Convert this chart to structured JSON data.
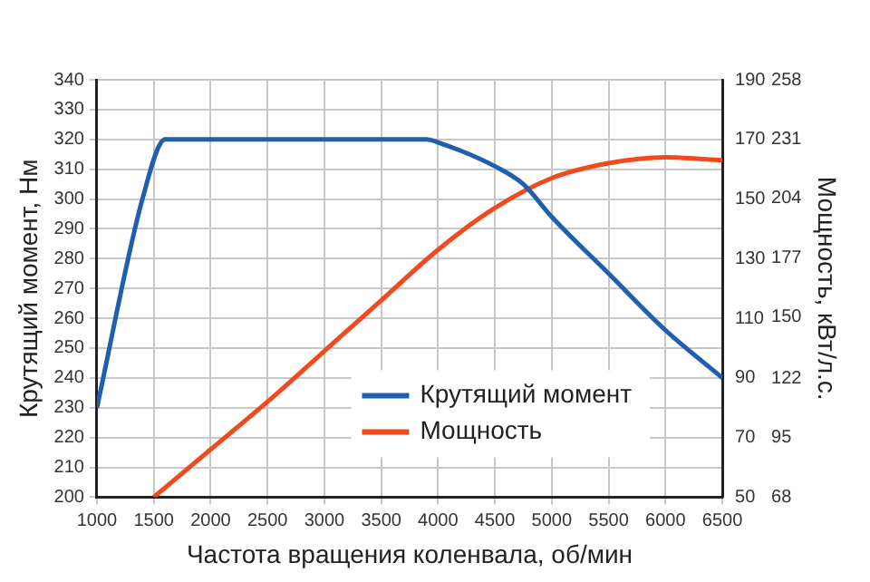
{
  "chart_data": {
    "type": "line",
    "xlabel": "Частота вращения коленвала, об/мин",
    "ylabel": "Крутящий момент, Нм",
    "y2label": "Мощность, кВт/л.с.",
    "xlim": [
      1000,
      6500
    ],
    "xticks": [
      1000,
      1500,
      2000,
      2500,
      3000,
      3500,
      4000,
      4500,
      5000,
      5500,
      6000,
      6500
    ],
    "ylim": [
      200,
      340
    ],
    "yticks": [
      200,
      210,
      220,
      230,
      240,
      250,
      260,
      270,
      280,
      290,
      300,
      310,
      320,
      330,
      340
    ],
    "y2lim": [
      50,
      190
    ],
    "y2ticks": [
      50,
      70,
      90,
      110,
      130,
      150,
      170,
      190
    ],
    "y3lim": [
      68,
      258
    ],
    "y3ticks": [
      68,
      95,
      122,
      150,
      177,
      204,
      231,
      258
    ],
    "grid": true,
    "legend": "bottom right",
    "marker": "none",
    "line_style": "solid",
    "series": [
      {
        "name": "Крутящий момент",
        "color": "#1f5fb0",
        "x": [
          1000,
          1400,
          1600,
          3900,
          4000,
          4500,
          4750,
          5000,
          5500,
          6000,
          6500
        ],
        "values": [
          230,
          300,
          320,
          320,
          319,
          311,
          305,
          294,
          275,
          256,
          240
        ]
      },
      {
        "name": "Мощность",
        "color": "#f04a1e",
        "axis": "y2",
        "x": [
          1500,
          2000,
          2500,
          3000,
          3500,
          4000,
          4500,
          5000,
          5500,
          6000,
          6500
        ],
        "values": [
          50,
          66,
          82,
          99,
          116,
          133,
          147,
          157,
          162,
          164,
          163
        ]
      }
    ]
  }
}
